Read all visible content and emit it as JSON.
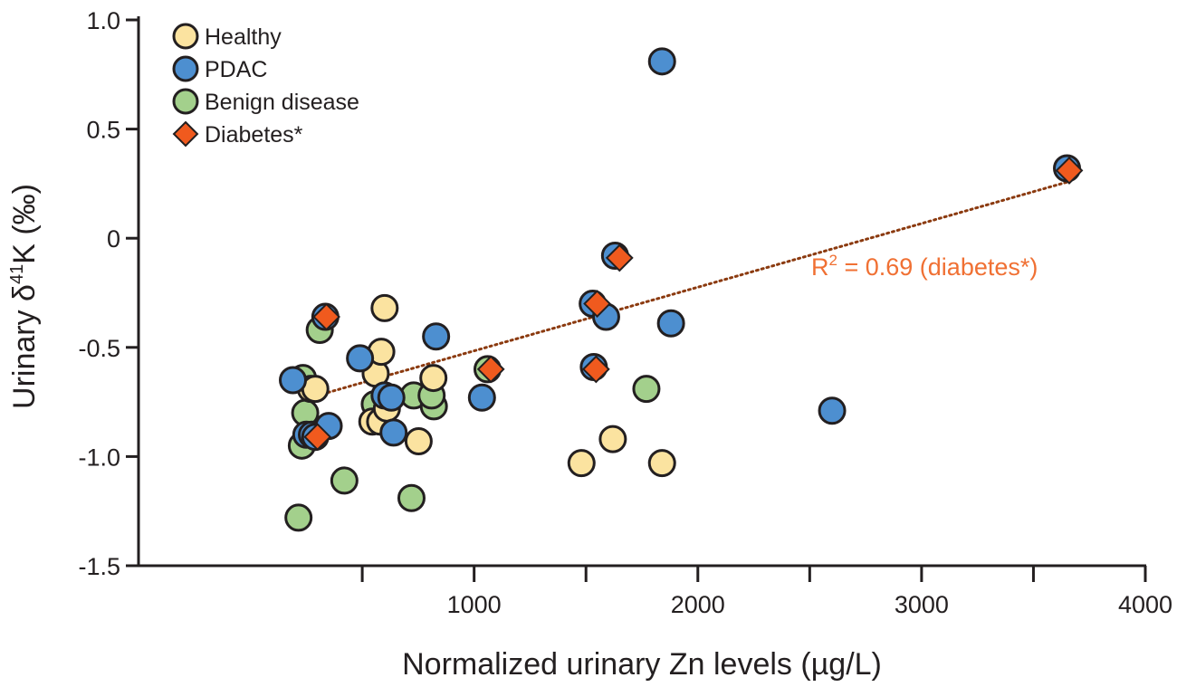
{
  "chart_data": {
    "type": "scatter",
    "title": "",
    "xlabel": "Normalized urinary Zn levels (µg/L)",
    "ylabel": {
      "prefix": "Urinary δ",
      "superscript": "41",
      "suffix": "K (‰)"
    },
    "xlim": [
      -500,
      4000
    ],
    "ylim": [
      -1.5,
      1.0
    ],
    "x_ticks": [
      500,
      1000,
      1500,
      2000,
      2500,
      3000,
      3500,
      4000
    ],
    "x_tick_labels": [
      "",
      "1000",
      "",
      "2000",
      "",
      "3000",
      "",
      "4000"
    ],
    "y_ticks": [
      -1.5,
      -1.0,
      -0.5,
      0,
      0.5,
      1.0
    ],
    "y_tick_labels": [
      "-1.5",
      "-1.0",
      "-0.5",
      "0",
      "0.5",
      "1.0"
    ],
    "grid": false,
    "legend_position": "top-left",
    "colors": {
      "healthy": "#fbe3a0",
      "pdac": "#4d8fd0",
      "benign": "#a3d08c",
      "diabetes": "#f05a1e",
      "trendline": "#8b3a0f",
      "annotation": "#f07033",
      "axis": "#231f20"
    },
    "legend": [
      {
        "key": "healthy",
        "label": "Healthy",
        "marker": "circle"
      },
      {
        "key": "pdac",
        "label": "PDAC",
        "marker": "circle"
      },
      {
        "key": "benign",
        "label": "Benign disease",
        "marker": "circle"
      },
      {
        "key": "diabetes",
        "label": "Diabetes*",
        "marker": "diamond"
      }
    ],
    "series": [
      {
        "name": "Benign disease",
        "key": "benign",
        "points": [
          [
            215,
            -1.28
          ],
          [
            230,
            -0.95
          ],
          [
            245,
            -0.8
          ],
          [
            235,
            -0.64
          ],
          [
            310,
            -0.42
          ],
          [
            420,
            -1.11
          ],
          [
            556,
            -0.76
          ],
          [
            730,
            -0.72
          ],
          [
            720,
            -1.19
          ],
          [
            820,
            -0.77
          ],
          [
            810,
            -0.72
          ],
          [
            1060,
            -0.6
          ],
          [
            1770,
            -0.69
          ]
        ]
      },
      {
        "name": "Healthy",
        "key": "healthy",
        "points": [
          [
            270,
            -0.69
          ],
          [
            290,
            -0.69
          ],
          [
            545,
            -0.84
          ],
          [
            560,
            -0.62
          ],
          [
            580,
            -0.84
          ],
          [
            585,
            -0.52
          ],
          [
            600,
            -0.32
          ],
          [
            610,
            -0.78
          ],
          [
            752,
            -0.93
          ],
          [
            818,
            -0.64
          ],
          [
            1480,
            -1.03
          ],
          [
            1620,
            -0.92
          ],
          [
            1840,
            -1.03
          ]
        ]
      },
      {
        "name": "PDAC",
        "key": "pdac",
        "points": [
          [
            190,
            -0.65
          ],
          [
            250,
            -0.9
          ],
          [
            275,
            -0.9
          ],
          [
            290,
            -0.91
          ],
          [
            350,
            -0.86
          ],
          [
            335,
            -0.36
          ],
          [
            490,
            -0.55
          ],
          [
            600,
            -0.72
          ],
          [
            640,
            -0.89
          ],
          [
            630,
            -0.73
          ],
          [
            830,
            -0.45
          ],
          [
            1035,
            -0.73
          ],
          [
            1530,
            -0.3
          ],
          [
            1535,
            -0.59
          ],
          [
            1590,
            -0.36
          ],
          [
            1630,
            -0.08
          ],
          [
            1880,
            -0.39
          ],
          [
            1840,
            0.81
          ],
          [
            2600,
            -0.79
          ],
          [
            3650,
            0.32
          ]
        ]
      },
      {
        "name": "Diabetes*",
        "key": "diabetes",
        "points": [
          [
            300,
            -0.91
          ],
          [
            340,
            -0.36
          ],
          [
            1075,
            -0.6
          ],
          [
            1545,
            -0.6
          ],
          [
            1550,
            -0.3
          ],
          [
            1650,
            -0.09
          ],
          [
            3660,
            0.31
          ]
        ]
      }
    ],
    "trendline": {
      "label": "R² = 0.69 (diabetes*)",
      "x": [
        300,
        3660
      ],
      "y": [
        -0.72,
        0.26
      ]
    }
  }
}
